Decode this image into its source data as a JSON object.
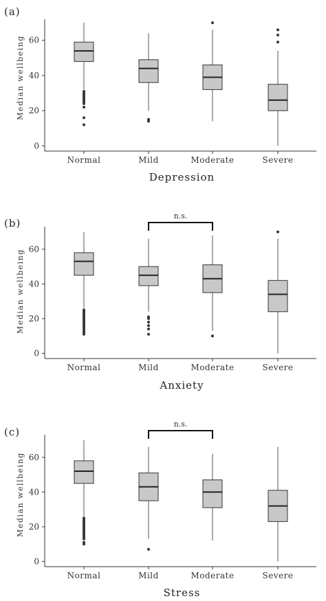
{
  "chart_data": [
    {
      "type": "box",
      "panel_label": "(a)",
      "xlabel": "Depression",
      "ylabel": "Median wellbeing",
      "categories": [
        "Normal",
        "Mild",
        "Moderate",
        "Severe"
      ],
      "y_ticks": [
        0,
        20,
        40,
        60
      ],
      "ylim": [
        -3,
        72
      ],
      "grid": false,
      "boxes": [
        {
          "category": "Normal",
          "whisker_low": 32,
          "q1": 48,
          "median": 54,
          "q3": 59,
          "whisker_high": 70,
          "outliers": [
            12,
            16,
            22,
            24,
            25,
            26,
            27,
            28,
            29,
            30,
            31
          ]
        },
        {
          "category": "Mild",
          "whisker_low": 20,
          "q1": 36,
          "median": 44,
          "q3": 49,
          "whisker_high": 64,
          "outliers": [
            14,
            15
          ]
        },
        {
          "category": "Moderate",
          "whisker_low": 14,
          "q1": 32,
          "median": 39,
          "q3": 46,
          "whisker_high": 66,
          "outliers": [
            70
          ]
        },
        {
          "category": "Severe",
          "whisker_low": 0,
          "q1": 20,
          "median": 26,
          "q3": 35,
          "whisker_high": 54,
          "outliers": [
            59,
            63,
            66
          ]
        }
      ],
      "significance": null
    },
    {
      "type": "box",
      "panel_label": "(b)",
      "xlabel": "Anxiety",
      "ylabel": "Median wellbeing",
      "categories": [
        "Normal",
        "Mild",
        "Moderate",
        "Severe"
      ],
      "y_ticks": [
        0,
        20,
        40,
        60
      ],
      "ylim": [
        -3,
        73
      ],
      "grid": false,
      "boxes": [
        {
          "category": "Normal",
          "whisker_low": 26,
          "q1": 45,
          "median": 53,
          "q3": 58,
          "whisker_high": 70,
          "outliers": [
            11,
            12,
            13,
            14,
            15,
            16,
            17,
            18,
            19,
            20,
            21,
            22,
            23,
            24,
            25
          ]
        },
        {
          "category": "Mild",
          "whisker_low": 24,
          "q1": 39,
          "median": 45,
          "q3": 50,
          "whisker_high": 66,
          "outliers": [
            11,
            14,
            16,
            18,
            20,
            21
          ]
        },
        {
          "category": "Moderate",
          "whisker_low": 13,
          "q1": 35,
          "median": 43,
          "q3": 51,
          "whisker_high": 68,
          "outliers": [
            10
          ]
        },
        {
          "category": "Severe",
          "whisker_low": 0,
          "q1": 24,
          "median": 34,
          "q3": 42,
          "whisker_high": 66,
          "outliers": [
            70
          ]
        }
      ],
      "significance": {
        "from": "Mild",
        "to": "Moderate",
        "label": "n.s."
      }
    },
    {
      "type": "box",
      "panel_label": "(c)",
      "xlabel": "Stress",
      "ylabel": "Median wellbeing",
      "categories": [
        "Normal",
        "Mild",
        "Moderate",
        "Severe"
      ],
      "y_ticks": [
        0,
        20,
        40,
        60
      ],
      "ylim": [
        -3,
        73
      ],
      "grid": false,
      "boxes": [
        {
          "category": "Normal",
          "whisker_low": 26,
          "q1": 45,
          "median": 52,
          "q3": 58,
          "whisker_high": 70,
          "outliers": [
            10,
            11,
            13,
            14,
            15,
            16,
            17,
            18,
            19,
            20,
            21,
            22,
            23,
            24,
            25
          ]
        },
        {
          "category": "Mild",
          "whisker_low": 13,
          "q1": 35,
          "median": 43,
          "q3": 51,
          "whisker_high": 66,
          "outliers": [
            7
          ]
        },
        {
          "category": "Moderate",
          "whisker_low": 12,
          "q1": 31,
          "median": 40,
          "q3": 47,
          "whisker_high": 62,
          "outliers": []
        },
        {
          "category": "Severe",
          "whisker_low": 0,
          "q1": 23,
          "median": 32,
          "q3": 41,
          "whisker_high": 66,
          "outliers": []
        }
      ],
      "significance": {
        "from": "Mild",
        "to": "Moderate",
        "label": "n.s."
      }
    }
  ]
}
